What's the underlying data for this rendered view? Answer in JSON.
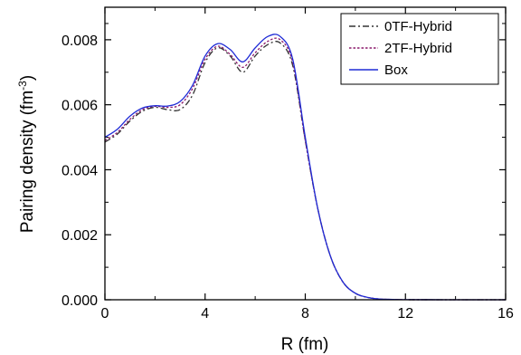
{
  "chart_data": {
    "type": "line",
    "xlabel": "R (fm)",
    "ylabel_main": "Pairing density (fm",
    "ylabel_sup": "-3",
    "ylabel_close": ")",
    "xlim": [
      0,
      16
    ],
    "ylim": [
      0,
      0.009
    ],
    "x_ticks": [
      0,
      4,
      8,
      12,
      16
    ],
    "x_tick_labels": [
      "0",
      "4",
      "8",
      "12",
      "16"
    ],
    "y_ticks": [
      0.0,
      0.002,
      0.004,
      0.006,
      0.008
    ],
    "y_tick_labels": [
      "0.000",
      "0.002",
      "0.004",
      "0.006",
      "0.008"
    ],
    "legend_position": "top-right",
    "series": [
      {
        "name": "0TF-Hybrid",
        "color": "#333333",
        "dash": "dashdot",
        "x": [
          0,
          0.5,
          1.0,
          1.5,
          2.0,
          2.5,
          3.0,
          3.5,
          4.0,
          4.5,
          5.0,
          5.5,
          6.0,
          6.5,
          7.0,
          7.5,
          8.0,
          8.5,
          9.0,
          9.5,
          10.0,
          10.5,
          11.0,
          11.5,
          12.0,
          13.0,
          14.0,
          15.0,
          16.0
        ],
        "y": [
          0.00485,
          0.0051,
          0.0055,
          0.0058,
          0.00592,
          0.00585,
          0.00585,
          0.0063,
          0.0073,
          0.00775,
          0.0075,
          0.007,
          0.0075,
          0.00785,
          0.0079,
          0.0072,
          0.0049,
          0.0028,
          0.00135,
          0.00055,
          0.0002,
          7e-05,
          2e-05,
          1e-05,
          3e-06,
          1e-06,
          0.0,
          0.0,
          0.0
        ]
      },
      {
        "name": "2TF-Hybrid",
        "color": "#8b1a6b",
        "dash": "dotted",
        "x": [
          0,
          0.5,
          1.0,
          1.5,
          2.0,
          2.5,
          3.0,
          3.5,
          4.0,
          4.5,
          5.0,
          5.5,
          6.0,
          6.5,
          7.0,
          7.5,
          8.0,
          8.5,
          9.0,
          9.5,
          10.0,
          10.5,
          11.0,
          11.5,
          12.0,
          13.0,
          14.0,
          15.0,
          16.0
        ],
        "y": [
          0.0049,
          0.00515,
          0.00555,
          0.00585,
          0.00595,
          0.00592,
          0.006,
          0.0065,
          0.0074,
          0.0078,
          0.00755,
          0.00715,
          0.0076,
          0.00795,
          0.008,
          0.0073,
          0.0049,
          0.0028,
          0.00135,
          0.00055,
          0.0002,
          7e-05,
          2e-05,
          1e-05,
          3e-06,
          1e-06,
          0.0,
          0.0,
          0.0
        ]
      },
      {
        "name": "Box",
        "color": "#1f2bd6",
        "dash": "solid",
        "x": [
          0,
          0.5,
          1.0,
          1.5,
          2.0,
          2.5,
          3.0,
          3.5,
          4.0,
          4.5,
          5.0,
          5.5,
          6.0,
          6.5,
          7.0,
          7.5,
          8.0,
          8.5,
          9.0,
          9.5,
          10.0,
          10.5,
          11.0,
          11.5,
          12.0,
          13.0,
          14.0,
          15.0,
          16.0
        ],
        "y": [
          0.005,
          0.00525,
          0.00565,
          0.0059,
          0.00597,
          0.00596,
          0.0061,
          0.0066,
          0.0075,
          0.00788,
          0.0077,
          0.00732,
          0.00775,
          0.0081,
          0.0081,
          0.0074,
          0.005,
          0.0028,
          0.00135,
          0.00055,
          0.0002,
          7e-05,
          2e-05,
          1e-05,
          3e-06,
          1e-06,
          0.0,
          0.0,
          0.0
        ]
      }
    ]
  }
}
